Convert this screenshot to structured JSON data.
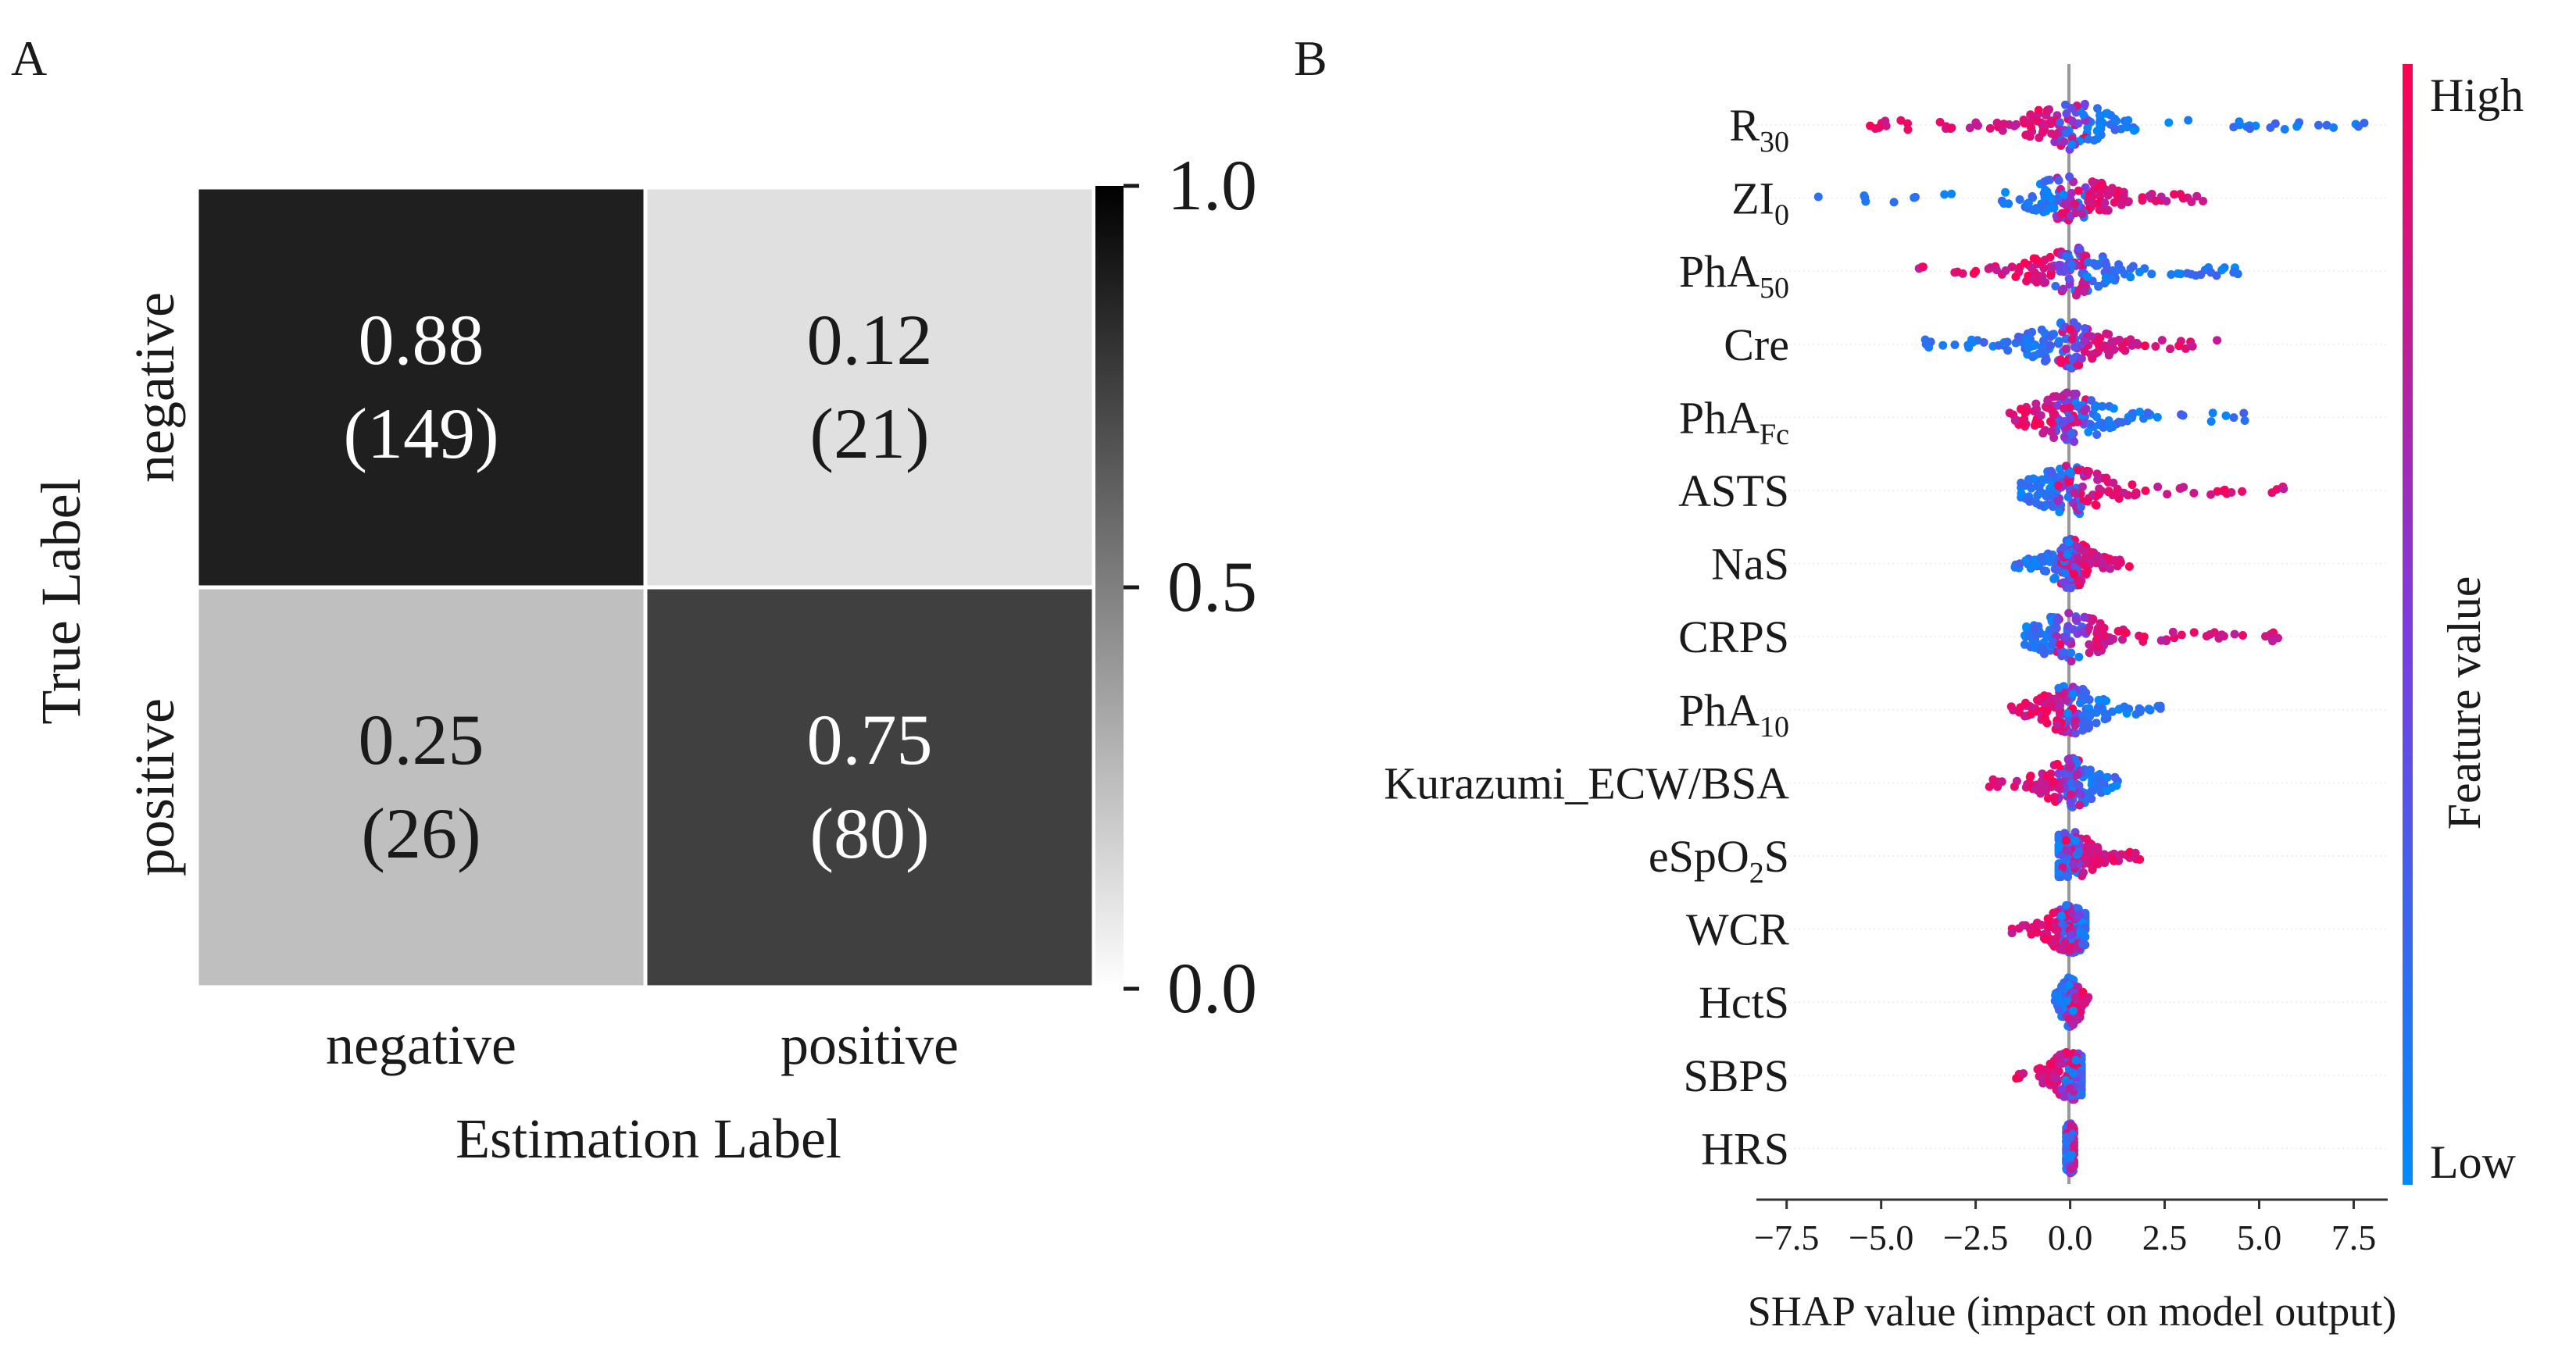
{
  "panels": {
    "a_label": "A",
    "b_label": "B"
  },
  "chart_data": [
    {
      "type": "heatmap",
      "title": "",
      "xlabel": "Estimation Label",
      "ylabel": "True Label",
      "x_categories": [
        "negative",
        "positive"
      ],
      "y_categories": [
        "negative",
        "positive"
      ],
      "values": [
        [
          0.88,
          0.12
        ],
        [
          0.25,
          0.75
        ]
      ],
      "counts": [
        [
          149,
          21
        ],
        [
          26,
          80
        ]
      ],
      "cell_text": [
        [
          "0.88",
          "(149)",
          "0.12",
          "(21)"
        ],
        [
          "0.25",
          "(26)",
          "0.75",
          "(80)"
        ]
      ],
      "colorbar": {
        "range": [
          0.0,
          1.0
        ],
        "ticks": [
          "1.0",
          "0.5",
          "0.0"
        ],
        "colormap": "white-to-black"
      }
    },
    {
      "type": "scatter",
      "subtype": "shap-beeswarm",
      "xlabel": "SHAP value (impact on model output)",
      "xlim": [
        -8.3,
        8.4
      ],
      "xticks": [
        "−7.5",
        "−5.0",
        "−2.5",
        "0.0",
        "2.5",
        "5.0",
        "7.5"
      ],
      "features": [
        {
          "name": "R",
          "sub": "30",
          "spreadL": 5.5,
          "spreadR": 7.8,
          "highSide": "left"
        },
        {
          "name": "ZI",
          "sub": "0",
          "spreadL": 7.0,
          "spreadR": 3.6,
          "highSide": "right"
        },
        {
          "name": "PhA",
          "sub": "50",
          "spreadL": 4.0,
          "spreadR": 4.6,
          "highSide": "left"
        },
        {
          "name": "Cre",
          "sub": "",
          "spreadL": 4.2,
          "spreadR": 3.9,
          "highSide": "right"
        },
        {
          "name": "PhA",
          "sub": "Fc",
          "spreadL": 1.6,
          "spreadR": 4.9,
          "highSide": "left"
        },
        {
          "name": "ASTS",
          "sub": "",
          "spreadL": 1.3,
          "spreadR": 5.8,
          "highSide": "right"
        },
        {
          "name": "NaS",
          "sub": "",
          "spreadL": 1.5,
          "spreadR": 1.6,
          "highSide": "right"
        },
        {
          "name": "CRPS",
          "sub": "",
          "spreadL": 1.2,
          "spreadR": 5.6,
          "highSide": "right"
        },
        {
          "name": "PhA",
          "sub": "10",
          "spreadL": 1.6,
          "spreadR": 2.4,
          "highSide": "left"
        },
        {
          "name": "Kurazumi_ECW/BSA",
          "sub": "",
          "spreadL": 2.2,
          "spreadR": 1.6,
          "highSide": "left"
        },
        {
          "name": "eSpO",
          "sub": "2",
          "suffix": "S",
          "spreadL": 0.3,
          "spreadR": 1.9,
          "highSide": "right"
        },
        {
          "name": "WCR",
          "sub": "",
          "spreadL": 1.7,
          "spreadR": 0.4,
          "highSide": "left"
        },
        {
          "name": "HctS",
          "sub": "",
          "spreadL": 0.4,
          "spreadR": 0.5,
          "highSide": "right"
        },
        {
          "name": "SBPS",
          "sub": "",
          "spreadL": 1.5,
          "spreadR": 0.3,
          "highSide": "left"
        },
        {
          "name": "HRS",
          "sub": "",
          "spreadL": 0.1,
          "spreadR": 0.1,
          "highSide": "right"
        }
      ],
      "colorbar": {
        "label": "Feature value",
        "high": "High",
        "low": "Low",
        "high_color": "#ff0051",
        "low_color": "#008bfb"
      }
    }
  ]
}
